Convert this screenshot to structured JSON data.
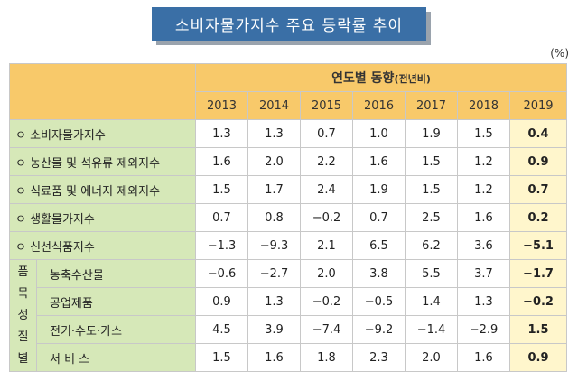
{
  "title": "소비자물가지수 주요 등락률 추이",
  "unit": "(%)",
  "header": {
    "group_main": "연도별 동향",
    "group_sub": "(전년비)",
    "years": [
      "2013",
      "2014",
      "2015",
      "2016",
      "2017",
      "2018",
      "2019"
    ]
  },
  "rows": [
    {
      "label": "ㅇ 소비자물가지수",
      "values": [
        "1.3",
        "1.3",
        "0.7",
        "1.0",
        "1.9",
        "1.5",
        "0.4"
      ]
    },
    {
      "label": "ㅇ 농산물 및 석유류 제외지수",
      "values": [
        "1.6",
        "2.0",
        "2.2",
        "1.6",
        "1.5",
        "1.2",
        "0.9"
      ]
    },
    {
      "label": "ㅇ 식료품 및 에너지 제외지수",
      "values": [
        "1.5",
        "1.7",
        "2.4",
        "1.9",
        "1.5",
        "1.2",
        "0.7"
      ]
    },
    {
      "label": "ㅇ 생활물가지수",
      "values": [
        "0.7",
        "0.8",
        "−0.2",
        "0.7",
        "2.5",
        "1.6",
        "0.2"
      ]
    },
    {
      "label": "ㅇ 신선식품지수",
      "values": [
        "−1.3",
        "−9.3",
        "2.1",
        "6.5",
        "6.2",
        "3.6",
        "−5.1"
      ]
    }
  ],
  "group_label_chars": [
    "품",
    "목",
    "성",
    "질",
    "별"
  ],
  "subrows": [
    {
      "label": "농축수산물",
      "values": [
        "−0.6",
        "−2.7",
        "2.0",
        "3.8",
        "5.5",
        "3.7",
        "−1.7"
      ]
    },
    {
      "label": "공업제품",
      "values": [
        "0.9",
        "1.3",
        "−0.2",
        "−0.5",
        "1.4",
        "1.3",
        "−0.2"
      ]
    },
    {
      "label": "전기·수도·가스",
      "values": [
        "4.5",
        "3.9",
        "−7.4",
        "−9.2",
        "−1.4",
        "−2.9",
        "1.5"
      ]
    },
    {
      "label": "서 비 스",
      "values": [
        "1.5",
        "1.6",
        "1.8",
        "2.3",
        "2.0",
        "1.6",
        "0.9"
      ]
    }
  ]
}
